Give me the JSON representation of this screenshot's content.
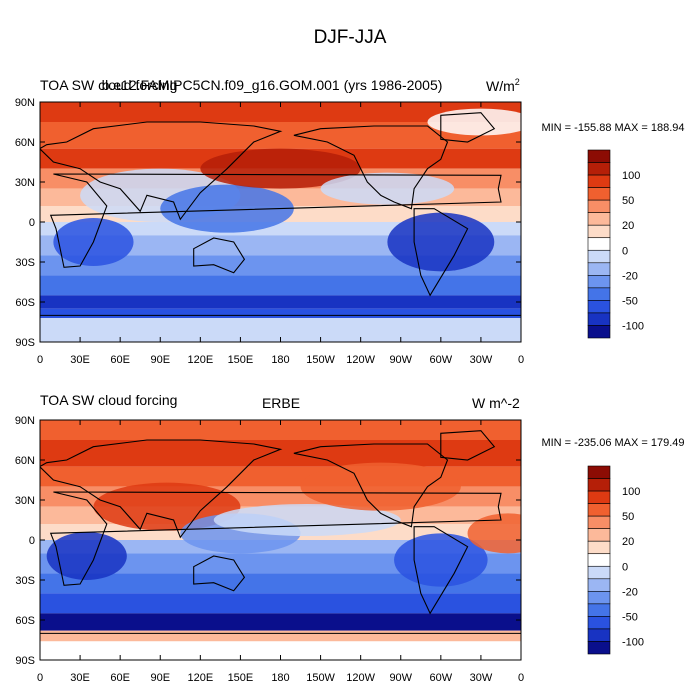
{
  "title": "DJF-JJA",
  "panels": [
    {
      "left_title": "TOA SW cloud forcing",
      "center_title": "b.e12.FAMIPC5CN.f09_g16.GOM.001 (yrs 1986-2005)",
      "units_main": "W/m",
      "units_sup": "2",
      "minmax": "MIN = -155.88 MAX = 188.94"
    },
    {
      "left_title": "TOA SW cloud forcing",
      "center_title": "ERBE",
      "units_main": "W m^-2",
      "units_sup": "",
      "minmax": "MIN = -235.06 MAX = 179.49"
    }
  ],
  "chart_data": [
    {
      "type": "heatmap",
      "title": "b.e12.FAMIPC5CN.f09_g16.GOM.001 (yrs 1986-2005)",
      "variable": "TOA SW cloud forcing",
      "season": "DJF-JJA",
      "units": "W/m^2",
      "min": -155.88,
      "max": 188.94,
      "x_ticks": [
        "0",
        "30E",
        "60E",
        "90E",
        "120E",
        "150E",
        "180",
        "150W",
        "120W",
        "90W",
        "60W",
        "30W",
        "0"
      ],
      "y_ticks": [
        "90N",
        "60N",
        "30N",
        "0",
        "30S",
        "60S",
        "90S"
      ],
      "xlim": [
        0,
        360
      ],
      "ylim": [
        -90,
        90
      ],
      "colorbar_levels": [
        -100,
        -80,
        -50,
        -40,
        -20,
        -10,
        0,
        10,
        20,
        40,
        50,
        80,
        100
      ],
      "colorbar_labels": [
        "100",
        "50",
        "20",
        "0",
        "-20",
        "-50",
        "-100"
      ]
    },
    {
      "type": "heatmap",
      "title": "ERBE",
      "variable": "TOA SW cloud forcing",
      "season": "DJF-JJA",
      "units": "W m^-2",
      "min": -235.06,
      "max": 179.49,
      "x_ticks": [
        "0",
        "30E",
        "60E",
        "90E",
        "120E",
        "150E",
        "180",
        "150W",
        "120W",
        "90W",
        "60W",
        "30W",
        "0"
      ],
      "y_ticks": [
        "90N",
        "60N",
        "30N",
        "0",
        "30S",
        "60S",
        "90S"
      ],
      "xlim": [
        0,
        360
      ],
      "ylim": [
        -90,
        90
      ],
      "colorbar_levels": [
        -100,
        -80,
        -50,
        -40,
        -20,
        -10,
        0,
        10,
        20,
        40,
        50,
        80,
        100
      ],
      "colorbar_labels": [
        "100",
        "50",
        "20",
        "0",
        "-20",
        "-50",
        "-100"
      ]
    }
  ],
  "colors": {
    "palette": [
      "#0a0f8c",
      "#1833c2",
      "#2a52e0",
      "#4474e8",
      "#6c94ef",
      "#9bb6f3",
      "#cbdaf8",
      "#ffffff",
      "#fddcc8",
      "#fcb99a",
      "#f88e66",
      "#f0602f",
      "#de3a12",
      "#b51f08",
      "#8c0c04"
    ]
  }
}
